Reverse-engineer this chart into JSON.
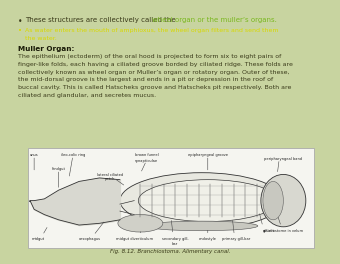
{
  "bg_color": "#c8d4a0",
  "bullet1_pre": "These structures are collectively called the ",
  "bullet1_green": "wheel organ or the muller’s organs.",
  "bullet2_lines": [
    "As water enters the mouth of amphioxus, the wheel organ filters and send them",
    "the water."
  ],
  "section_title": "Muller Organ:",
  "body_lines": [
    "The epithelium (ectoderm) of the oral hood is projected to form six to eight pairs of",
    "finger-like folds, each having a ciliated groove borded by ciliated ridge. These folds are",
    "collectively known as wheel organ or Muller’s organ or rotatory organ. Outer of these,",
    "the mid-dorsal groove is the largest and ends in a pit or depression in the roof of",
    "buccal cavity. This is called Hatscheks groove and Hatscheks pit respectively. Both are",
    "ciliated and glandular, and secretes mucus."
  ],
  "fig_caption": "Fig. 8.12. Branchiostoma. Alimentary canal.",
  "dark_text": "#3a3a1a",
  "green_text": "#7ab820",
  "yellow_text": "#d8d800",
  "bold_text": "#1a1a08",
  "fig_bg": "#f5f5f0",
  "fig_border": "#aaaaaa",
  "diagram_line": "#333333",
  "diagram_fill": "#e0e0d8",
  "label_color": "#222222"
}
